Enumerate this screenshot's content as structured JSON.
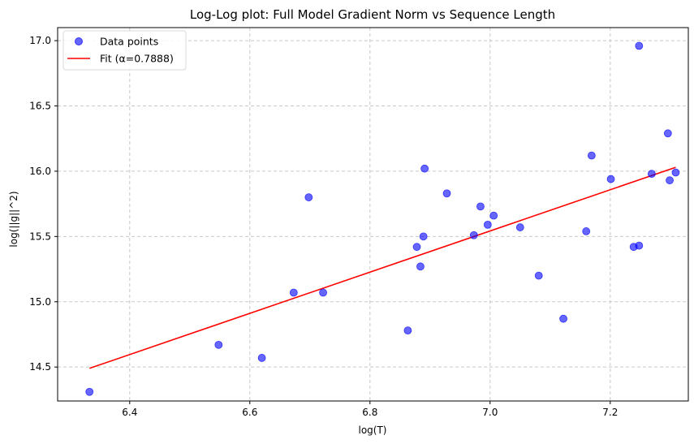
{
  "chart_data": {
    "type": "scatter",
    "title": "Log-Log plot: Full Model Gradient Norm vs Sequence Length",
    "xlabel": "log(T)",
    "ylabel": "log(||g||^2)",
    "xlim": [
      6.28,
      7.33
    ],
    "ylim": [
      14.24,
      17.1
    ],
    "xticks": [
      6.4,
      6.6,
      6.8,
      7.0,
      7.2
    ],
    "xtick_labels": [
      "6.4",
      "6.6",
      "6.8",
      "7.0",
      "7.2"
    ],
    "yticks": [
      14.5,
      15.0,
      15.5,
      16.0,
      16.5,
      17.0
    ],
    "ytick_labels": [
      "14.5",
      "15.0",
      "15.5",
      "16.0",
      "16.5",
      "17.0"
    ],
    "grid": true,
    "legend_position": "top-left",
    "series": [
      {
        "name": "Data points",
        "kind": "scatter",
        "color": "#0000ff",
        "alpha": 0.6,
        "x": [
          6.333,
          6.548,
          6.62,
          6.673,
          6.698,
          6.722,
          6.863,
          6.878,
          6.884,
          6.889,
          6.891,
          6.928,
          6.973,
          6.984,
          6.996,
          7.006,
          7.05,
          7.081,
          7.122,
          7.16,
          7.169,
          7.201,
          7.239,
          7.248,
          7.248,
          7.269,
          7.296,
          7.299,
          7.309
        ],
        "y": [
          14.31,
          14.67,
          14.57,
          15.07,
          15.8,
          15.07,
          14.78,
          15.42,
          15.27,
          15.5,
          16.02,
          15.83,
          15.51,
          15.73,
          15.59,
          15.66,
          15.57,
          15.2,
          14.87,
          15.54,
          16.12,
          15.94,
          15.42,
          15.43,
          16.96,
          15.98,
          16.29,
          15.93,
          15.99
        ]
      },
      {
        "name": "Fit (α=0.7888)",
        "kind": "line",
        "color": "#ff0000",
        "x": [
          6.333,
          7.309
        ],
        "y": [
          14.49,
          16.03
        ]
      }
    ]
  },
  "colors": {
    "grid": "#c8c8c8",
    "axis": "#000000",
    "legend_border": "#d9d9d9"
  }
}
